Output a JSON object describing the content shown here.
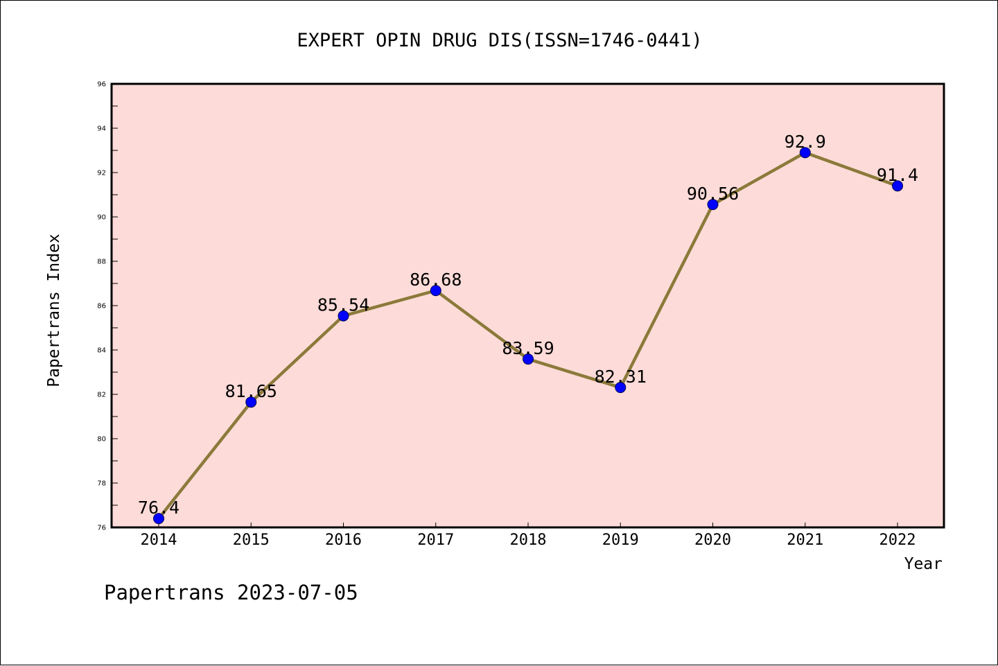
{
  "chart_data": {
    "type": "line",
    "title": "EXPERT OPIN DRUG DIS(ISSN=1746-0441)",
    "xlabel": "Year",
    "ylabel": "Papertrans Index",
    "categories": [
      "2014",
      "2015",
      "2016",
      "2017",
      "2018",
      "2019",
      "2020",
      "2021",
      "2022"
    ],
    "series": [
      {
        "values": [
          76.4,
          81.65,
          85.54,
          86.68,
          83.59,
          82.31,
          90.56,
          92.9,
          91.4
        ],
        "labels": [
          "76.4",
          "81.65",
          "85.54",
          "86.68",
          "83.59",
          "82.31",
          "90.56",
          "92.9",
          "91.4"
        ],
        "line_color": "#8b7a3a",
        "marker_color": "#0000ff"
      }
    ],
    "ylim": [
      76,
      96
    ],
    "yticks": [
      "76",
      "78",
      "80",
      "82",
      "84",
      "86",
      "88",
      "90",
      "92",
      "94",
      "96"
    ],
    "plot_background": "#fddbd8",
    "grid": false,
    "legend": "none"
  },
  "footer": {
    "text": "Papertrans 2023-07-05"
  }
}
